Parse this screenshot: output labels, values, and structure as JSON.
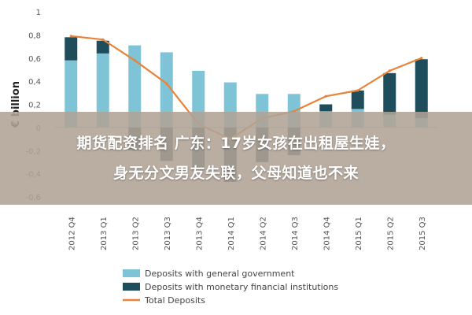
{
  "chart_data": {
    "type": "bar",
    "ylabel": "€ billion",
    "ylim": [
      -0.6,
      1.0
    ],
    "yticks": [
      "1",
      "0,8",
      "0,6",
      "0,4",
      "0,2",
      "0",
      "-0,2",
      "-0,4",
      "-0,6"
    ],
    "categories": [
      "2012 Q4",
      "2013 Q1",
      "2013 Q2",
      "2013 Q3",
      "2013 Q4",
      "2014 Q1",
      "2014 Q2",
      "2014 Q3",
      "2014 Q4",
      "2015 Q1",
      "2015 Q2",
      "2015 Q3"
    ],
    "series": [
      {
        "name": "Deposits with general government",
        "type": "bar",
        "color": "#7fc3d6",
        "values": [
          0.58,
          0.64,
          0.71,
          0.65,
          0.49,
          0.39,
          0.29,
          0.29,
          0.14,
          0.16,
          0.11,
          0.08
        ]
      },
      {
        "name": "Deposits with monetary financial institutions",
        "type": "bar",
        "color": "#1e4d5c",
        "values": [
          0.2,
          0.11,
          -0.2,
          -0.29,
          -0.37,
          -0.47,
          -0.3,
          -0.24,
          0.06,
          0.16,
          0.36,
          0.51
        ]
      },
      {
        "name": "Total Deposits",
        "type": "line",
        "color": "#e8833a",
        "values": [
          0.79,
          0.76,
          0.58,
          0.38,
          0.03,
          -0.1,
          0.08,
          0.14,
          0.27,
          0.32,
          0.49,
          0.6
        ]
      }
    ],
    "legend_position": "bottom",
    "grid": false
  },
  "overlay": {
    "line1": "期货配资排名 广东：17岁女孩在出租屋生娃，",
    "line2": "身无分文男友失联，父母知道也不来"
  }
}
